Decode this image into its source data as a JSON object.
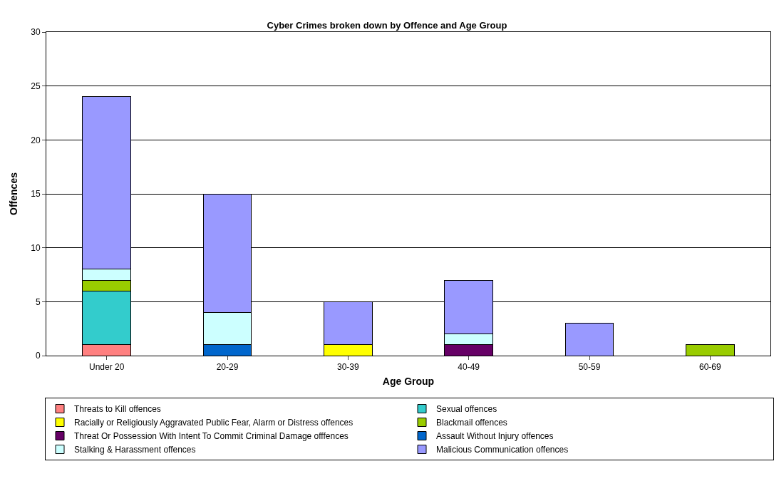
{
  "chart_data": {
    "type": "bar",
    "title": "Cyber Crimes broken down by Offence and Age Group",
    "xlabel": "Age Group",
    "ylabel": "Offences",
    "categories": [
      "Under 20",
      "20-29",
      "30-39",
      "40-49",
      "50-59",
      "60-69"
    ],
    "stacked": true,
    "ylim": [
      0,
      30
    ],
    "yticks": [
      0,
      5,
      10,
      15,
      20,
      25,
      30
    ],
    "grid": "y",
    "legend": "bottom",
    "series": [
      {
        "name": "Threats to Kill offences",
        "color": "#ff8080",
        "values": [
          1,
          null,
          null,
          null,
          null,
          null
        ]
      },
      {
        "name": "Sexual offences",
        "color": "#33cccc",
        "values": [
          5,
          null,
          null,
          null,
          null,
          null
        ]
      },
      {
        "name": "Racially or Religiously Aggravated Public Fear, Alarm or Distress offences",
        "color": "#ffff00",
        "values": [
          null,
          null,
          1,
          null,
          null,
          null
        ]
      },
      {
        "name": "Blackmail offences",
        "color": "#99cc00",
        "values": [
          1,
          null,
          null,
          null,
          null,
          1
        ]
      },
      {
        "name": "Threat Or Possession With Intent To Commit Criminal Damage offfences",
        "color": "#660066",
        "values": [
          null,
          null,
          null,
          1,
          null,
          null
        ]
      },
      {
        "name": "Assault Without Injury offences",
        "color": "#0066cc",
        "values": [
          null,
          1,
          null,
          null,
          null,
          null
        ]
      },
      {
        "name": "Stalking & Harassment offences",
        "color": "#ccffff",
        "values": [
          1,
          3,
          null,
          1,
          null,
          null
        ]
      },
      {
        "name": "Malicious Communication offences",
        "color": "#9999ff",
        "values": [
          16,
          11,
          4,
          5,
          3,
          null
        ]
      }
    ]
  }
}
